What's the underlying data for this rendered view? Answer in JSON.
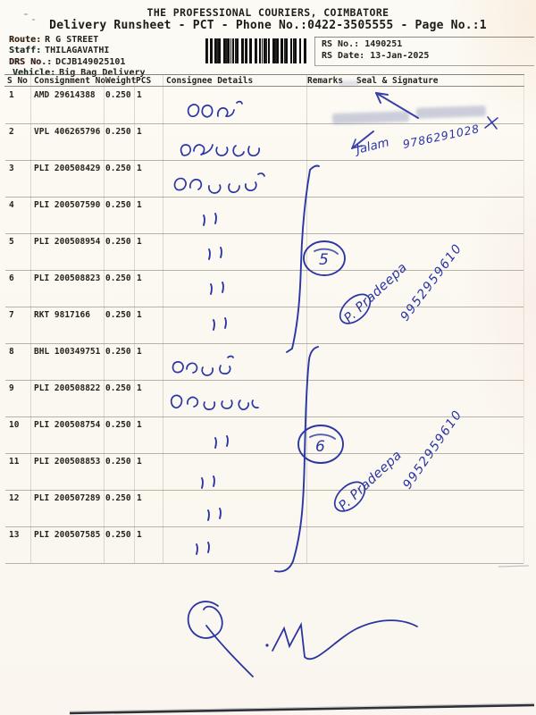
{
  "document": {
    "title": "THE PROFESSIONAL COURIERS, COIMBATORE",
    "subtitle": "Delivery Runsheet - PCT - Phone No.:0422-3505555 - Page No.:1",
    "route_label": "Route:",
    "route_value": "R G STREET",
    "staff_label": "Staff:",
    "staff_value": "THILAGAVATHI",
    "drs_label": "DRS No.:",
    "drs_value": "DCJB149025101",
    "vehicle_label": "Vehicle:",
    "vehicle_value": "Big Bag Delivery",
    "rs_no_label": "RS No.:",
    "rs_no_value": "1490251",
    "rs_date_label": "RS Date:",
    "rs_date_value": "13-Jan-2025",
    "barcode_icon": "barcode"
  },
  "table": {
    "headers": {
      "s_no": "S No",
      "consignment_no": "Consignment No",
      "weight": "Weight",
      "pcs": "PCS",
      "consignee": "Consignee Details",
      "remarks": "Remarks",
      "seal": "Seal & Signature"
    },
    "rows": [
      {
        "s_no": "1",
        "consignment_no": "AMD 29614388",
        "weight": "0.250",
        "pcs": "1"
      },
      {
        "s_no": "2",
        "consignment_no": "VPL 406265796",
        "weight": "0.250",
        "pcs": "1"
      },
      {
        "s_no": "3",
        "consignment_no": "PLI 200508429",
        "weight": "0.250",
        "pcs": "1"
      },
      {
        "s_no": "4",
        "consignment_no": "PLI 200507590",
        "weight": "0.250",
        "pcs": "1"
      },
      {
        "s_no": "5",
        "consignment_no": "PLI 200508954",
        "weight": "0.250",
        "pcs": "1"
      },
      {
        "s_no": "6",
        "consignment_no": "PLI 200508823",
        "weight": "0.250",
        "pcs": "1"
      },
      {
        "s_no": "7",
        "consignment_no": "RKT 9817166",
        "weight": "0.250",
        "pcs": "1"
      },
      {
        "s_no": "8",
        "consignment_no": "BHL 100349751",
        "weight": "0.250",
        "pcs": "1"
      },
      {
        "s_no": "9",
        "consignment_no": "PLI 200508822",
        "weight": "0.250",
        "pcs": "1"
      },
      {
        "s_no": "10",
        "consignment_no": "PLI 200508754",
        "weight": "0.250",
        "pcs": "1"
      },
      {
        "s_no": "11",
        "consignment_no": "PLI 200508853",
        "weight": "0.250",
        "pcs": "1"
      },
      {
        "s_no": "12",
        "consignment_no": "PLI 200507289",
        "weight": "0.250",
        "pcs": "1"
      },
      {
        "s_no": "13",
        "consignment_no": "PLI 200507585",
        "weight": "0.250",
        "pcs": "1"
      }
    ]
  },
  "handwriting": {
    "ink_color": "#2b36a5",
    "consignee_names_tamil": [
      "உதய்",
      "கிளினை",
      "அவினந்த்",
      "அதித்யா",
      "சேமாவதி"
    ],
    "received_ditto_marks": 8,
    "groups": [
      {
        "batch_count": "5",
        "signature_name": "P. Pradeepa",
        "phone": "9952959610"
      },
      {
        "batch_count": "6",
        "signature_name": "P. Pradeepa",
        "phone": "9952959610"
      }
    ],
    "remarks_note": {
      "name": "Jalam",
      "phone": "9786291028"
    }
  }
}
